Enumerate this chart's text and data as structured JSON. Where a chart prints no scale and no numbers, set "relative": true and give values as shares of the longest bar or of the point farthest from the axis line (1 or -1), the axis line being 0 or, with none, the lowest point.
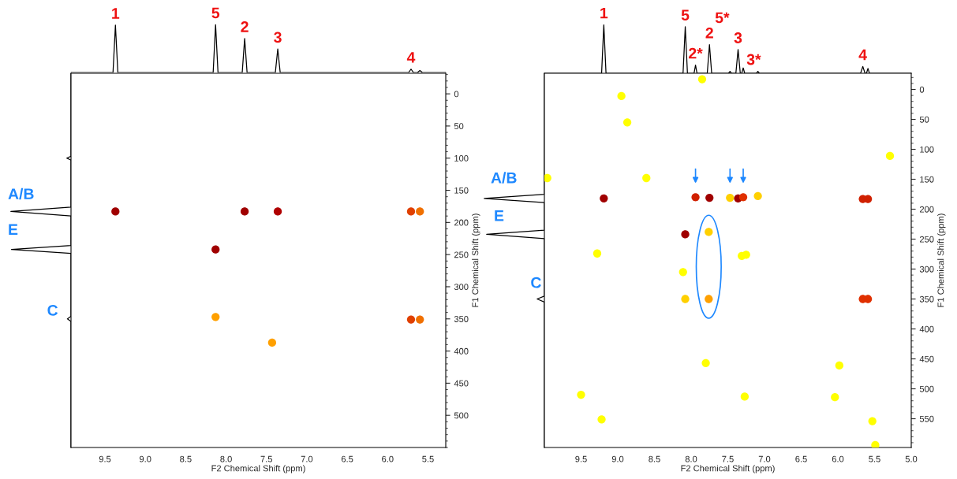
{
  "chart_data": [
    {
      "type": "line",
      "relative": true,
      "xlim": [
        9.92,
        5.28
      ],
      "x": [
        9.92,
        9.4,
        9.37,
        9.34,
        8.16,
        8.13,
        8.1,
        7.8,
        7.77,
        7.74,
        7.39,
        7.36,
        7.33,
        5.74,
        5.71,
        5.68,
        5.63,
        5.6,
        5.57,
        5.28
      ],
      "series": [
        {
          "color": "#000000",
          "values": [
            0,
            0,
            0.99,
            0,
            0,
            1,
            0,
            0,
            0.71,
            0,
            0,
            0.49,
            0,
            0,
            0.07,
            0,
            0,
            0.04,
            0,
            0
          ]
        }
      ],
      "annotations": [
        {
          "text": "1",
          "x": 9.37,
          "y": 0.99
        },
        {
          "text": "5",
          "x": 8.13,
          "y": 1
        },
        {
          "text": "2",
          "x": 7.77,
          "y": 0.71
        },
        {
          "text": "3",
          "x": 7.36,
          "y": 0.49
        },
        {
          "text": "4",
          "x": 5.71,
          "y": 0.07
        }
      ]
    },
    {
      "type": "line",
      "orientation": "horizontal",
      "relative": true,
      "ylim": [
        550,
        -32
      ],
      "x": [
        -32,
        97,
        100,
        103,
        176,
        183,
        190,
        236,
        242,
        248,
        346,
        350,
        354,
        550
      ],
      "series": [
        {
          "color": "#000000",
          "values": [
            0,
            0,
            -0.07,
            0,
            0,
            -1,
            0,
            0,
            -0.99,
            0,
            0,
            -0.06,
            0,
            0
          ]
        }
      ],
      "annotations": [
        "A/B",
        "E",
        "C"
      ]
    },
    {
      "type": "scatter",
      "xlabel": "F2 Chemical Shift (ppm)",
      "ylabel": "F1 Chemical Shift (ppm)",
      "xlim": [
        9.92,
        5.28
      ],
      "ylim": [
        550,
        -32
      ],
      "xticks": [
        9.5,
        {
          "value": 9,
          "label": "9.0"
        },
        8.5,
        {
          "value": 8,
          "label": "8.0"
        },
        7.5,
        {
          "value": 7,
          "label": "7.0"
        },
        6.5,
        {
          "value": 6,
          "label": "6.0"
        },
        5.5
      ],
      "yticks": [
        0,
        50,
        100,
        150,
        200,
        250,
        300,
        350,
        400,
        450,
        500
      ],
      "x": [
        9.37,
        7.77,
        7.36,
        5.71,
        5.6,
        8.13,
        8.13,
        5.71,
        5.6,
        7.43
      ],
      "values": [
        183,
        183,
        183,
        183,
        183,
        242,
        347,
        351,
        351,
        387
      ],
      "colors": [
        "#a00000",
        "#a00000",
        "#b00000",
        "#e04000",
        "#f07000",
        "#a00000",
        "#ffa000",
        "#e04000",
        "#f07000",
        "#ffa000"
      ]
    },
    {
      "type": "line",
      "relative": true,
      "xlim": [
        10.0,
        5.0
      ],
      "x": [
        10.0,
        9.22,
        9.19,
        9.16,
        8.11,
        8.08,
        8.05,
        7.96,
        7.94,
        7.92,
        7.78,
        7.75,
        7.72,
        7.49,
        7.47,
        7.45,
        7.39,
        7.36,
        7.33,
        7.31,
        7.29,
        7.27,
        7.11,
        7.09,
        7.07,
        5.69,
        5.66,
        5.63,
        5.61,
        5.59,
        5.57,
        5.0
      ],
      "series": [
        {
          "color": "#000000",
          "values": [
            0,
            0,
            1,
            0,
            0,
            0.96,
            0,
            0,
            0.17,
            0,
            0,
            0.59,
            0,
            0,
            0.04,
            0,
            0,
            0.49,
            0,
            0,
            0.11,
            0,
            0,
            0.04,
            0,
            0,
            0.14,
            0,
            0,
            0.1,
            0,
            0
          ]
        }
      ],
      "annotations": [
        {
          "text": "1",
          "x": 9.19,
          "y": 1
        },
        {
          "text": "5",
          "x": 8.08,
          "y": 0.96
        },
        {
          "text": "2*",
          "x": 7.94,
          "y": 0.17
        },
        {
          "text": "2",
          "x": 7.75,
          "y": 0.59
        },
        {
          "text": "5*",
          "x": 7.75,
          "y": 0.59
        },
        {
          "text": "3",
          "x": 7.36,
          "y": 0.49
        },
        {
          "text": "3*",
          "x": 7.29,
          "y": 0.11
        },
        {
          "text": "4",
          "x": 5.66,
          "y": 0.14
        }
      ]
    },
    {
      "type": "line",
      "orientation": "horizontal",
      "relative": true,
      "ylim": [
        598,
        -27
      ],
      "x": [
        -27,
        175,
        182,
        189,
        235,
        242,
        249,
        345,
        350,
        355,
        598
      ],
      "series": [
        {
          "color": "#000000",
          "values": [
            0,
            0,
            -1,
            0,
            0,
            -0.96,
            0,
            0,
            -0.12,
            0,
            0
          ]
        }
      ],
      "annotations": [
        "A/B",
        "E",
        "C"
      ]
    },
    {
      "type": "scatter",
      "xlabel": "F2 Chemical Shift (ppm)",
      "ylabel": "F1 Chemical Shift (ppm)",
      "xlim": [
        10.0,
        5.0
      ],
      "ylim": [
        598,
        -27
      ],
      "xticks": [
        9.5,
        {
          "value": 9,
          "label": "9.0"
        },
        8.5,
        {
          "value": 8,
          "label": "8.0"
        },
        7.5,
        {
          "value": 7,
          "label": "7.0"
        },
        6.5,
        {
          "value": 6,
          "label": "6.0"
        },
        5.5,
        {
          "value": 5,
          "label": "5.0"
        }
      ],
      "yticks": [
        0,
        50,
        100,
        150,
        200,
        250,
        300,
        350,
        400,
        450,
        500,
        550
      ],
      "x": [
        9.19,
        7.94,
        7.75,
        7.47,
        7.36,
        7.29,
        7.09,
        5.66,
        5.59,
        8.08,
        7.76,
        8.11,
        8.08,
        7.76,
        5.66,
        5.59,
        7.85,
        8.95,
        8.87,
        8.61,
        9.96,
        5.29,
        9.28,
        7.31,
        7.25,
        7.8,
        5.98,
        9.5,
        7.27,
        6.04,
        9.22,
        5.53,
        5.49
      ],
      "values": [
        182,
        180,
        181,
        181,
        182,
        180,
        178,
        183,
        183,
        242,
        238,
        305,
        350,
        350,
        350,
        350,
        -17,
        11,
        55,
        148,
        148,
        111,
        274,
        278,
        276,
        457,
        461,
        510,
        513,
        514,
        551,
        554,
        594
      ],
      "colors": [
        "#a00000",
        "#d02000",
        "#a00000",
        "#ffd000",
        "#a00000",
        "#e03000",
        "#ffd000",
        "#d02000",
        "#d02000",
        "#a00000",
        "#ffd000",
        "#ffff00",
        "#ffd000",
        "#ffa000",
        "#e03000",
        "#e03000",
        "#ffff00",
        "#ffff00",
        "#ffff00",
        "#ffff00",
        "#ffff00",
        "#ffff00",
        "#ffff00",
        "#ffff00",
        "#ffff00",
        "#ffff00",
        "#ffff00",
        "#ffff00",
        "#ffff00",
        "#ffff00",
        "#ffff00",
        "#ffff00",
        "#ffff00"
      ]
    }
  ]
}
